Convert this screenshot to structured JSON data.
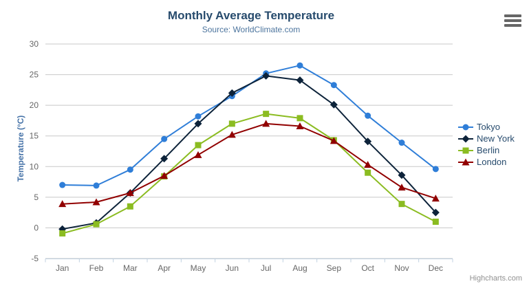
{
  "chart_data": {
    "type": "line",
    "title": "Monthly Average Temperature",
    "subtitle": "Source: WorldClimate.com",
    "categories": [
      "Jan",
      "Feb",
      "Mar",
      "Apr",
      "May",
      "Jun",
      "Jul",
      "Aug",
      "Sep",
      "Oct",
      "Nov",
      "Dec"
    ],
    "series": [
      {
        "name": "Tokyo",
        "color": "#2f7ed8",
        "marker": "circle",
        "values": [
          7.0,
          6.9,
          9.5,
          14.5,
          18.2,
          21.5,
          25.2,
          26.5,
          23.3,
          18.3,
          13.9,
          9.6
        ]
      },
      {
        "name": "New York",
        "color": "#0d233a",
        "marker": "diamond",
        "values": [
          -0.2,
          0.8,
          5.7,
          11.3,
          17.0,
          22.0,
          24.8,
          24.1,
          20.1,
          14.1,
          8.6,
          2.5
        ]
      },
      {
        "name": "Berlin",
        "color": "#8bbc21",
        "marker": "square",
        "values": [
          -0.9,
          0.6,
          3.5,
          8.4,
          13.5,
          17.0,
          18.6,
          17.9,
          14.3,
          9.0,
          3.9,
          1.0
        ]
      },
      {
        "name": "London",
        "color": "#910000",
        "marker": "triangle",
        "values": [
          3.9,
          4.2,
          5.7,
          8.5,
          11.9,
          15.2,
          17.0,
          16.6,
          14.2,
          10.3,
          6.6,
          4.8
        ]
      }
    ],
    "xlabel": "",
    "ylabel": "Temperature (°C)",
    "ylim": [
      -5,
      30
    ],
    "ytick_step": 5,
    "grid": true,
    "legend_position": "right"
  },
  "credits": {
    "label": "Highcharts.com"
  },
  "context_button": {
    "icon": "hamburger-menu-icon"
  },
  "colors": {
    "title": "#274b6d",
    "subtitle": "#4d759e",
    "axis_label": "#666666",
    "axis_title": "#4572a7",
    "legend_text": "#274b6d",
    "gridline": "#c8c8c8",
    "axis_line": "#c0d0e0",
    "tick": "#c0d0e0",
    "credits": "#909090",
    "menu_icon": "#666666",
    "background": "#ffffff"
  }
}
